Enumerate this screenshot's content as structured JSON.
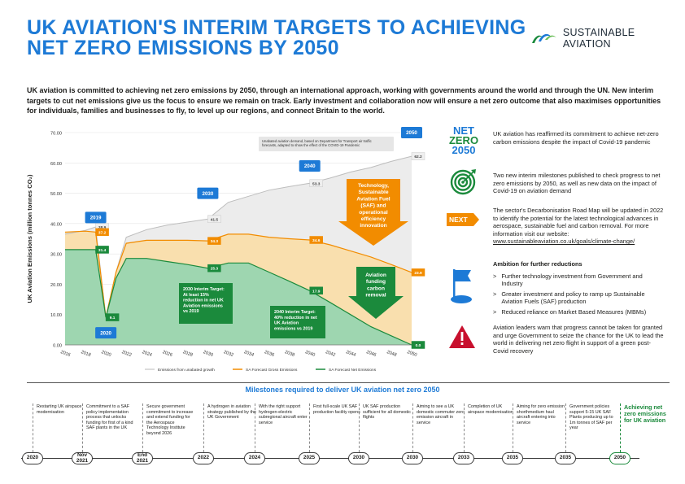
{
  "header": {
    "title_line1": "UK AVIATION'S INTERIM TARGETS TO ACHIEVING",
    "title_line2": "NET ZERO EMISSIONS BY 2050",
    "brand": "SUSTAINABLE AVIATION"
  },
  "intro": "UK aviation is committed to achieving net zero emissions by 2050, through an international approach, working with governments around the world and through the UN. New interim targets to cut net emissions give us the focus to ensure we remain on track. Early investment and collaboration now will ensure a net zero outcome that also maximises opportunities for individuals, families and businesses to fly, to level up our regions, and connect Britain to the world.",
  "chart_data": {
    "type": "area",
    "ylabel": "UK Aviation Emissions (million tonnes CO₂)",
    "ylim": [
      0,
      70
    ],
    "yticks": [
      "0.00",
      "10.00",
      "20.00",
      "30.00",
      "40.00",
      "50.00",
      "60.00",
      "70.00"
    ],
    "xticks": [
      "2016",
      "2018",
      "2020",
      "2022",
      "2024",
      "2026",
      "2028",
      "2030",
      "2032",
      "2034",
      "2036",
      "2038",
      "2040",
      "2042",
      "2044",
      "2046",
      "2048",
      "2050"
    ],
    "series": [
      {
        "name": "Emissions from unabated growth",
        "color": "#d0d0d0",
        "x": [
          2016,
          2018,
          2019,
          2020,
          2021,
          2022,
          2024,
          2026,
          2028,
          2030,
          2032,
          2034,
          2036,
          2038,
          2040,
          2042,
          2044,
          2046,
          2048,
          2050
        ],
        "y": [
          36.5,
          37.8,
          38.9,
          9.1,
          24,
          35.5,
          38,
          39.5,
          40.5,
          41.5,
          47,
          49,
          51,
          52.2,
          53.3,
          55,
          57,
          58.5,
          60.5,
          62.2
        ]
      },
      {
        "name": "SA Forecast Gross Emissions",
        "color": "#f28c00",
        "x": [
          2016,
          2018,
          2019,
          2020,
          2021,
          2022,
          2024,
          2026,
          2028,
          2030,
          2032,
          2034,
          2036,
          2038,
          2040,
          2042,
          2044,
          2046,
          2048,
          2050
        ],
        "y": [
          37.2,
          37.5,
          37.2,
          9.1,
          24,
          33.5,
          34.5,
          34.5,
          34.5,
          34.3,
          36.5,
          36.5,
          35.5,
          35,
          34.6,
          33,
          31,
          29,
          26.5,
          23.9
        ]
      },
      {
        "name": "SA Forecast Net Emissions",
        "color": "#1b8a3c",
        "x": [
          2016,
          2018,
          2019,
          2020,
          2021,
          2022,
          2024,
          2026,
          2028,
          2030,
          2032,
          2034,
          2036,
          2038,
          2040,
          2042,
          2044,
          2046,
          2048,
          2050
        ],
        "y": [
          31.4,
          31.4,
          31.4,
          9.1,
          22,
          28.5,
          28.5,
          27.5,
          26.5,
          25.3,
          27,
          27,
          24,
          21,
          17.9,
          14,
          10,
          6,
          3,
          0
        ]
      }
    ],
    "data_labels": [
      {
        "x": 2019,
        "y": 38.9,
        "text": "38.9",
        "style": "grey"
      },
      {
        "x": 2019,
        "y": 37.2,
        "text": "37.2",
        "style": "orange"
      },
      {
        "x": 2019,
        "y": 31.4,
        "text": "31.4",
        "style": "green"
      },
      {
        "x": 2020,
        "y": 9.1,
        "text": "9.1",
        "style": "green"
      },
      {
        "x": 2030,
        "y": 41.5,
        "text": "41.5",
        "style": "grey"
      },
      {
        "x": 2030,
        "y": 34.3,
        "text": "34.3",
        "style": "orange"
      },
      {
        "x": 2030,
        "y": 25.3,
        "text": "25.3",
        "style": "green"
      },
      {
        "x": 2040,
        "y": 53.3,
        "text": "53.3",
        "style": "grey"
      },
      {
        "x": 2040,
        "y": 34.6,
        "text": "34.6",
        "style": "orange"
      },
      {
        "x": 2040,
        "y": 17.9,
        "text": "17.9",
        "style": "green"
      },
      {
        "x": 2050,
        "y": 62.2,
        "text": "62.2",
        "style": "grey"
      },
      {
        "x": 2050,
        "y": 23.9,
        "text": "23.9",
        "style": "orange"
      },
      {
        "x": 2050,
        "y": 0,
        "text": "0.0",
        "style": "green"
      }
    ],
    "year_badges": [
      {
        "x": 2019,
        "y": 42,
        "text": "2019"
      },
      {
        "x": 2020,
        "y": 4,
        "text": "2020"
      },
      {
        "x": 2030,
        "y": 50,
        "text": "2030"
      },
      {
        "x": 2040,
        "y": 59,
        "text": "2040"
      },
      {
        "x": 2050,
        "y": 70,
        "text": "2050"
      }
    ],
    "annotations": {
      "note": "Unabated aviation demand, based on Department for Transport air traffic forecasts, adapted to show the effect of the COVID-19 Pandemic",
      "tech_arrow": "Technology, Sustainable Aviation Fuel (SAF) and operational efficiency innovation",
      "funding_arrow": "Aviation funding carbon removal",
      "target_2030": "2030 Interim Target: At least 15% reduction in net UK Aviation emissions vs 2019",
      "target_2040": "2040 Interim Target: 40% reduction in net UK Aviation emissions vs 2019"
    },
    "legend_position": "bottom",
    "colors": {
      "grey_fill": "#ececec",
      "orange_fill": "#f9dfae",
      "green_fill": "#9ed6b0",
      "blue": "#1d7ad6"
    }
  },
  "side": {
    "net_zero": {
      "line1": "NET",
      "line2": "ZERO",
      "line3": "2050"
    },
    "next_label": "NEXT",
    "p1": "UK aviation has reaffirmed its commitment to achieve net-zero carbon emissions despite the impact of Covid-19 pandemic",
    "p2": "Two new interim milestones published to check progress to net zero emissions by 2050, as well as new data on the impact of Covid-19 on aviation demand",
    "p3": "The sector's Decarbonisation Road Map will be updated in 2022 to identify the potential for the latest technological advances in aerospace, sustainable fuel and carbon removal. For more information visit our website:",
    "p3_link": "www.sustainableaviation.co.uk/goals/climate-change/",
    "ambition_title": "Ambition for further reductions",
    "bullet_marker": ">",
    "bullets": [
      "Further technology investment from Government and Industry",
      "Greater investment and policy to ramp up Sustainable Aviation Fuels (SAF) production",
      "Reduced reliance on Market Based Measures (MBMs)"
    ],
    "p5": "Aviation leaders warn that progress cannot be taken for granted and urge Government to seize the chance for the UK to lead the world in delivering net zero flight in support of a green post-Covid recovery"
  },
  "milestones": {
    "title": "Milestones required to deliver UK aviation net zero 2050",
    "items": [
      {
        "year": "2020",
        "text": "Restarting UK airspace modernisation"
      },
      {
        "year": "Nov 2021",
        "text": "Commitment to a SAF policy implementation process that unlocks funding for first of a kind SAF plants in the UK"
      },
      {
        "year": "End 2021",
        "text": "Secure government commitment to increase and extend funding for the Aerospace Technology Institute beyond 2026"
      },
      {
        "year": "2022",
        "text": "A hydrogen in aviation strategy published by the UK Government"
      },
      {
        "year": "2024",
        "text": "With the right support hydrogen-electric subregional aircraft enter service"
      },
      {
        "year": "2025",
        "text": "First full-scale UK SAF production facility opens"
      },
      {
        "year": "2030",
        "text": "UK SAF production sufficient for all domestic flights"
      },
      {
        "year": "2030",
        "text": "Aiming to see a UK domestic commuter zero emission aircraft in service"
      },
      {
        "year": "2033",
        "text": "Completion of UK airspace modernisation"
      },
      {
        "year": "2035",
        "text": "Aiming for zero emission shorthmedium haul aircraft entering into service"
      },
      {
        "year": "2035",
        "text": "Government policies support 5-15 UK SAF Plants producing up to 1m tonnes of SAF per year"
      },
      {
        "year": "2050",
        "text": "Achieving net zero emissions for UK aviation"
      }
    ]
  }
}
